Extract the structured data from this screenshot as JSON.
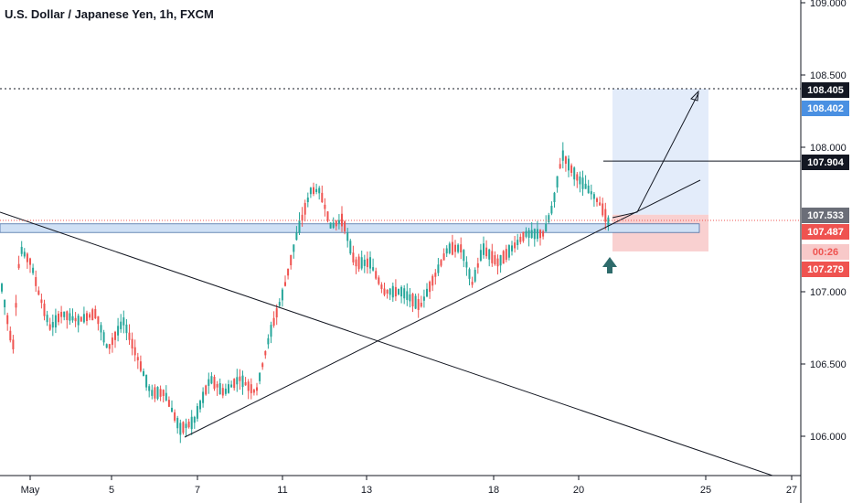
{
  "chart": {
    "title": "U.S. Dollar / Japanese Yen, 1h, FXCM"
  },
  "chart_data": {
    "type": "candlestick",
    "y_axis": {
      "ticks": [
        "109.000",
        "108.500",
        "108.000",
        "107.000",
        "106.500",
        "106.000"
      ],
      "tick_values": [
        109.0,
        108.5,
        108.0,
        107.0,
        106.5,
        106.0
      ]
    },
    "x_axis": {
      "ticks": [
        "May",
        "5",
        "7",
        "11",
        "13",
        "18",
        "20",
        "25",
        "27"
      ]
    },
    "price_tags": [
      {
        "label": "108.405",
        "value": 108.405,
        "bg": "#131722",
        "fg": "#ffffff"
      },
      {
        "label": "108.402",
        "value": 108.402,
        "bg": "#4a90e2",
        "fg": "#ffffff"
      },
      {
        "label": "107.904",
        "value": 107.904,
        "bg": "#131722",
        "fg": "#ffffff"
      },
      {
        "label": "107.533",
        "value": 107.533,
        "bg": "#6b6e78",
        "fg": "#ffffff"
      },
      {
        "label": "107.487",
        "value": 107.487,
        "bg": "#ef5350",
        "fg": "#ffffff"
      },
      {
        "label": "00:26",
        "value": 107.39,
        "bg": "#f8c9c9",
        "fg": "#ef5350"
      },
      {
        "label": "107.279",
        "value": 107.279,
        "bg": "#ef5350",
        "fg": "#ffffff"
      }
    ],
    "colors": {
      "up": "#26a69a",
      "down": "#ef5350",
      "trendline": "#131722",
      "support_zone": "#cfe0f5",
      "target_zone": "#e3ecfa",
      "stop_zone": "#f9d0d0",
      "arrow": "#2e6b6b"
    }
  }
}
